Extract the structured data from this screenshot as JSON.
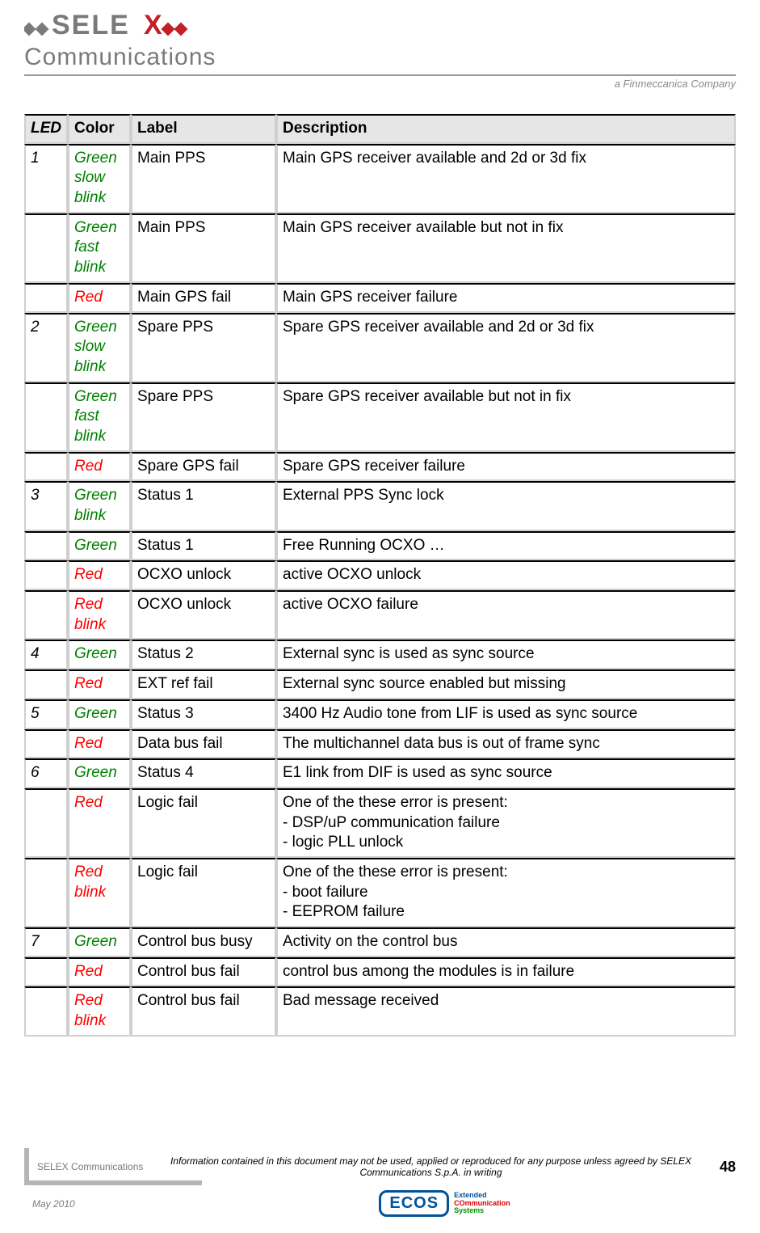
{
  "header": {
    "brand_line1": "SELEX",
    "brand_line2": "Communications",
    "tagline": "a Finmeccanica Company",
    "logo_colors": {
      "gray": "#7a7a7a",
      "red": "#c31f26"
    }
  },
  "table": {
    "headers": {
      "led": "LED",
      "color": "Color",
      "label": "Label",
      "description": "Description"
    },
    "header_bg": "#e6e6e6",
    "border_dark": "#000000",
    "border_light": "#cfcfcf",
    "color_classes": {
      "green": "#008000",
      "red": "#ff0000"
    },
    "rows": [
      {
        "led": "1",
        "color": "Green slow blink",
        "color_class": "green",
        "label": "Main PPS",
        "description": "Main GPS receiver available and 2d or 3d fix"
      },
      {
        "led": "",
        "color": "Green fast blink",
        "color_class": "green",
        "label": "Main PPS",
        "description": "Main GPS receiver available but not in fix"
      },
      {
        "led": "",
        "color": "Red",
        "color_class": "red",
        "label": "Main GPS fail",
        "description": "Main GPS receiver failure"
      },
      {
        "led": "2",
        "color": "Green slow blink",
        "color_class": "green",
        "label": "Spare PPS",
        "description": "Spare GPS receiver available and 2d or 3d fix"
      },
      {
        "led": "",
        "color": "Green fast blink",
        "color_class": "green",
        "label": "Spare PPS",
        "description": "Spare GPS receiver available but not in fix"
      },
      {
        "led": "",
        "color": "Red",
        "color_class": "red",
        "label": "Spare GPS fail",
        "description": "Spare GPS receiver failure"
      },
      {
        "led": "3",
        "color": "Green blink",
        "color_class": "green",
        "label": "Status 1",
        "description": "External PPS Sync lock"
      },
      {
        "led": "",
        "color": "Green",
        "color_class": "green",
        "label": "Status 1",
        "description": "Free Running OCXO …"
      },
      {
        "led": "",
        "color": "Red",
        "color_class": "red",
        "label": "OCXO unlock",
        "description": "active OCXO unlock"
      },
      {
        "led": "",
        "color": "Red blink",
        "color_class": "red",
        "label": "OCXO unlock",
        "description": "active OCXO failure"
      },
      {
        "led": "4",
        "color": "Green",
        "color_class": "green",
        "label": "Status 2",
        "description": "External sync is used as sync source"
      },
      {
        "led": "",
        "color": "Red",
        "color_class": "red",
        "label": "EXT ref fail",
        "description": "External sync source enabled but missing"
      },
      {
        "led": "5",
        "color": "Green",
        "color_class": "green",
        "label": "Status 3",
        "description": "3400 Hz Audio tone from LIF is used as sync source"
      },
      {
        "led": "",
        "color": "Red",
        "color_class": "red",
        "label": "Data bus fail",
        "description": "The multichannel data bus is out of frame sync"
      },
      {
        "led": "6",
        "color": "Green",
        "color_class": "green",
        "label": "Status 4",
        "description": "E1 link from DIF is used as sync source"
      },
      {
        "led": "",
        "color": "Red",
        "color_class": "red",
        "label": "Logic fail",
        "description": "One of the these error is present:\n- DSP/uP communication failure\n- logic PLL unlock"
      },
      {
        "led": "",
        "color": "Red blink",
        "color_class": "red",
        "label": "Logic fail",
        "description": "One of the these error is present:\n- boot failure\n- EEPROM failure"
      },
      {
        "led": "7",
        "color": "Green",
        "color_class": "green",
        "label": "Control bus busy",
        "description": "Activity on the control bus"
      },
      {
        "led": "",
        "color": "Red",
        "color_class": "red",
        "label": "Control bus fail",
        "description": "control bus among the modules is in failure"
      },
      {
        "led": "",
        "color": "Red blink",
        "color_class": "red",
        "label": "Control bus fail",
        "description": "Bad message received"
      }
    ]
  },
  "footer": {
    "company": "SELEX Communications",
    "notice": "Information contained in this document may not be used, applied or reproduced for any purpose unless agreed by SELEX Communications S.p.A. in writing",
    "page": "48",
    "date": "May 2010",
    "ecos": {
      "badge": "ECOS",
      "l1": "Extended",
      "l2": "COmmunication",
      "l3": "Systems",
      "border_color": "#00529b"
    }
  }
}
